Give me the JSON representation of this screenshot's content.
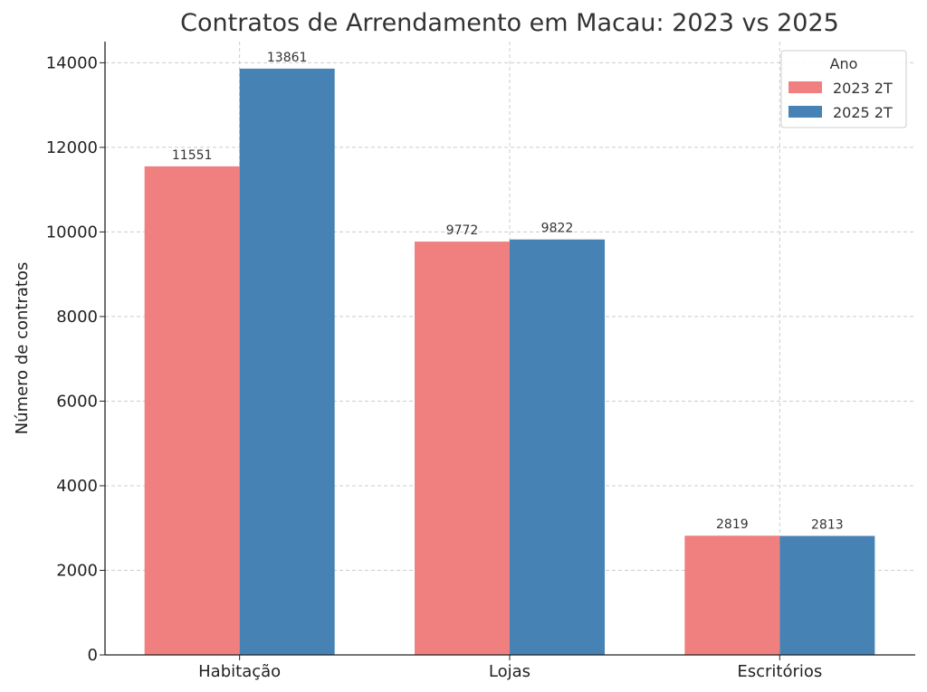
{
  "chart_data": {
    "type": "bar",
    "title": "Contratos de Arrendamento em Macau: 2023 vs 2025",
    "xlabel": "",
    "ylabel": "Número de contratos",
    "categories": [
      "Habitação",
      "Lojas",
      "Escritórios"
    ],
    "series": [
      {
        "name": "2023 2T",
        "color": "#F08080",
        "values": [
          11551,
          9772,
          2819
        ]
      },
      {
        "name": "2025 2T",
        "color": "#4682B4",
        "values": [
          13861,
          9822,
          2813
        ]
      }
    ],
    "ylim": [
      0,
      14500
    ],
    "yticks": [
      0,
      2000,
      4000,
      6000,
      8000,
      10000,
      12000,
      14000
    ],
    "grid": true,
    "legend": {
      "title": "Ano",
      "placement": "top-right"
    }
  }
}
